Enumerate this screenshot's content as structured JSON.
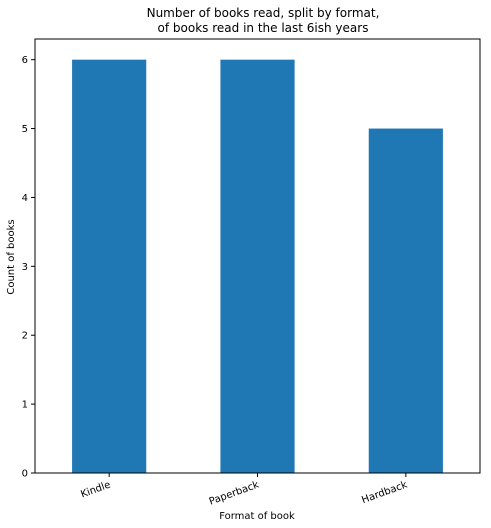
{
  "chart_data": {
    "type": "bar",
    "title_lines": [
      "Number of books read, split by format,",
      "of books read in the last 6ish years"
    ],
    "xlabel": "Format of book",
    "ylabel": "Count of books",
    "categories": [
      "Kindle",
      "Paperback",
      "Hardback"
    ],
    "values": [
      6,
      6,
      5
    ],
    "ylim": [
      0,
      6.3
    ],
    "yticks": [
      0,
      1,
      2,
      3,
      4,
      5,
      6
    ],
    "bar_color": "#1f77b4",
    "grid": false,
    "legend": "none",
    "x_tick_rotation_deg": -20
  }
}
